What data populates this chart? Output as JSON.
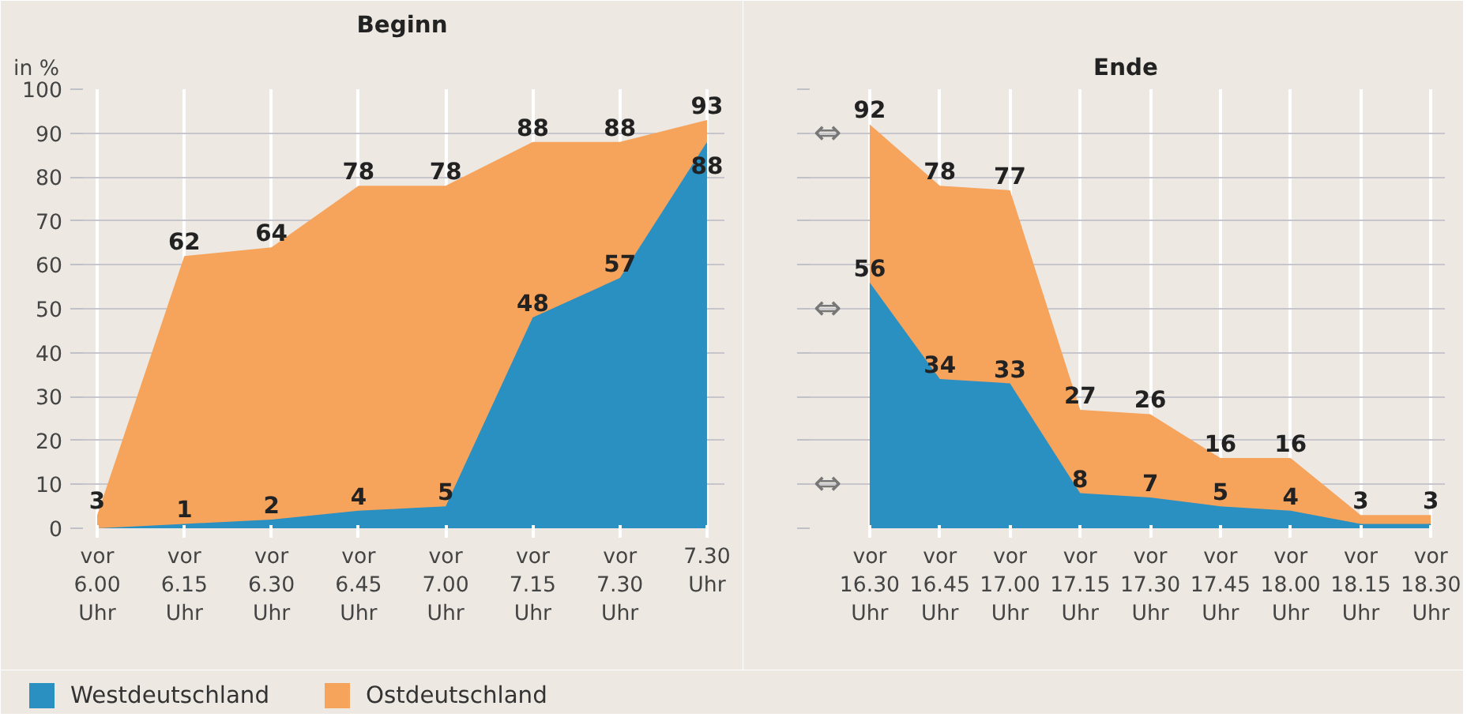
{
  "chart_data": [
    {
      "type": "area",
      "title": "Beginn",
      "ylabel": "in %",
      "categories": [
        "vor 6.00 Uhr",
        "vor 6.15 Uhr",
        "vor 6.30 Uhr",
        "vor 6.45 Uhr",
        "vor 7.00 Uhr",
        "vor 7.15 Uhr",
        "vor 7.30 Uhr",
        "7.30 Uhr"
      ],
      "series": [
        {
          "name": "Ostdeutschland",
          "color": "#f6a35c",
          "values": [
            3,
            62,
            64,
            78,
            78,
            88,
            88,
            93
          ],
          "value_labels": [
            "3",
            "62",
            "64",
            "78",
            "78",
            "88",
            "88",
            "93"
          ]
        },
        {
          "name": "Westdeutschland",
          "color": "#2a8fc1",
          "values": [
            0,
            1,
            2,
            4,
            5,
            48,
            57,
            88
          ],
          "value_labels": [
            null,
            "1",
            "2",
            "4",
            "5",
            "48",
            "57",
            "88"
          ]
        }
      ],
      "ylim": [
        0,
        100
      ],
      "yticks": [
        0,
        10,
        20,
        30,
        40,
        50,
        60,
        70,
        80,
        90,
        100
      ],
      "grid": true,
      "legend": "bottom"
    },
    {
      "type": "area",
      "title": "Ende",
      "categories": [
        "vor 16.30 Uhr",
        "vor 16.45 Uhr",
        "vor 17.00 Uhr",
        "vor 17.15 Uhr",
        "vor 17.30 Uhr",
        "vor 17.45 Uhr",
        "vor 18.00 Uhr",
        "vor 18.15 Uhr",
        "vor 18.30 Uhr"
      ],
      "series": [
        {
          "color": "#f6a35c",
          "values": [
            92,
            78,
            77,
            27,
            26,
            16,
            16,
            3,
            3
          ],
          "value_labels": [
            "92",
            "78",
            "77",
            "27",
            "26",
            "16",
            "16",
            "3",
            "3"
          ]
        },
        {
          "color": "#2a8fc1",
          "values": [
            56,
            34,
            33,
            8,
            7,
            5,
            4,
            1,
            1
          ],
          "value_labels": [
            "56",
            "34",
            "33",
            "8",
            "7",
            "5",
            "4",
            null,
            null
          ]
        }
      ],
      "ylim": [
        0,
        100
      ],
      "yticks": [
        0,
        10,
        20,
        30,
        40,
        50,
        60,
        70,
        80,
        90,
        100
      ],
      "grid": true,
      "tick_labels": "x",
      "annotations": [
        "⇔",
        "⇔",
        "⇔"
      ]
    }
  ]
}
